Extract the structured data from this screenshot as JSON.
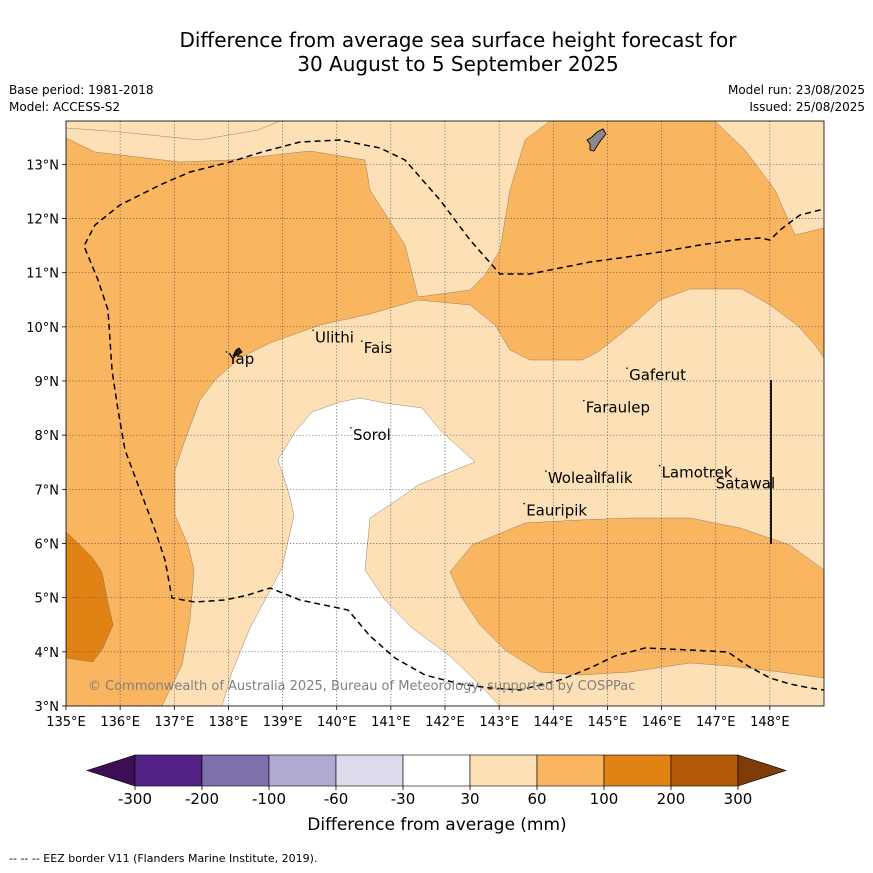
{
  "title_line1": "Difference from average sea surface height forecast for",
  "title_line2": "30 August to 5 September 2025",
  "base_period": "Base period: 1981-2018",
  "model": "Model: ACCESS-S2",
  "model_run": "Model run: 23/08/2025",
  "issued": "Issued: 25/08/2025",
  "copyright": "© Commonwealth of Australia 2025, Bureau of Meteorology, supported by COSPPac",
  "footer_note": "--  --  -- EEZ border V11 (Flanders Marine Institute, 2019).",
  "map": {
    "lon_range": [
      135,
      149
    ],
    "lat_range": [
      3,
      13.8
    ],
    "lon_ticks": [
      "135°E",
      "136°E",
      "137°E",
      "138°E",
      "139°E",
      "140°E",
      "141°E",
      "142°E",
      "143°E",
      "144°E",
      "145°E",
      "146°E",
      "147°E",
      "148°E"
    ],
    "lat_ticks": [
      "3°N",
      "4°N",
      "5°N",
      "6°N",
      "7°N",
      "8°N",
      "9°N",
      "10°N",
      "11°N",
      "12°N",
      "13°N"
    ],
    "places": [
      {
        "name": "Yap",
        "lon": 138.0,
        "lat": 9.5
      },
      {
        "name": "Ulithi",
        "lon": 139.6,
        "lat": 9.9
      },
      {
        "name": "Fais",
        "lon": 140.5,
        "lat": 9.7
      },
      {
        "name": "Sorol",
        "lon": 140.3,
        "lat": 8.1
      },
      {
        "name": "Gaferut",
        "lon": 145.4,
        "lat": 9.2
      },
      {
        "name": "Faraulep",
        "lon": 144.6,
        "lat": 8.6
      },
      {
        "name": "Woleai",
        "lon": 143.9,
        "lat": 7.3
      },
      {
        "name": "Ifalik",
        "lon": 144.8,
        "lat": 7.3
      },
      {
        "name": "Lamotrek",
        "lon": 146.0,
        "lat": 7.4
      },
      {
        "name": "Satawal",
        "lon": 147.0,
        "lat": 7.2
      },
      {
        "name": "Eauripik",
        "lon": 143.5,
        "lat": 6.7
      }
    ]
  },
  "legend": {
    "title": "Difference from average (mm)",
    "labels": [
      "-300",
      "-200",
      "-100",
      "-60",
      "-30",
      "30",
      "60",
      "100",
      "200",
      "300"
    ],
    "colors": [
      "#3c0f55",
      "#522184",
      "#7e70ac",
      "#b1a9d1",
      "#dbdbec",
      "#ffffff",
      "#fee0b6",
      "#fab561",
      "#e08214",
      "#b35806",
      "#7f3b08"
    ]
  }
}
